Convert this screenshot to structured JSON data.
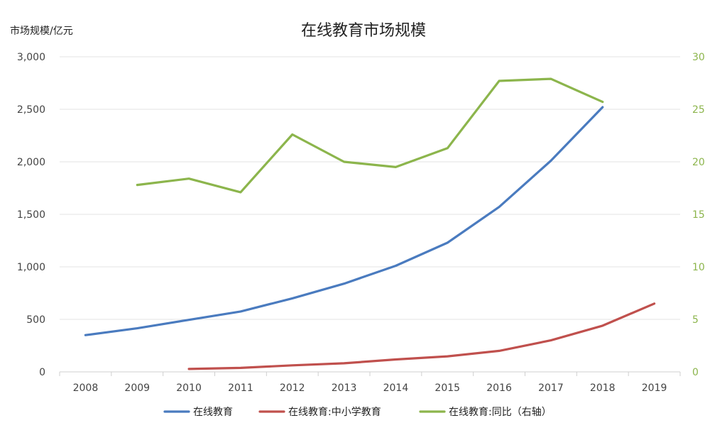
{
  "chart_data": {
    "type": "line",
    "title": "在线教育市场规模",
    "ylabel": "市场规模/亿元",
    "categories": [
      "2008",
      "2009",
      "2010",
      "2011",
      "2012",
      "2013",
      "2014",
      "2015",
      "2016",
      "2017",
      "2018",
      "2019"
    ],
    "ylim": [
      0,
      3000
    ],
    "y2lim": [
      0,
      30
    ],
    "yticks": [
      "0",
      "500",
      "1,000",
      "1,500",
      "2,000",
      "2,500",
      "3,000"
    ],
    "y2ticks": [
      "0",
      "5",
      "10",
      "15",
      "20",
      "25",
      "30"
    ],
    "grid": true,
    "legend_position": "bottom",
    "series": [
      {
        "name": "在线教育",
        "axis": "left",
        "color": "#4a7bbf",
        "values": [
          350,
          415,
          495,
          575,
          700,
          840,
          1010,
          1230,
          1570,
          2010,
          2520,
          null
        ]
      },
      {
        "name": "在线教育:中小学教育",
        "axis": "left",
        "color": "#c0504d",
        "values": [
          null,
          null,
          28,
          38,
          62,
          82,
          118,
          148,
          200,
          300,
          440,
          650
        ]
      },
      {
        "name": "在线教育:同比（右轴）",
        "axis": "right",
        "color": "#8cb54c",
        "values": [
          null,
          17.8,
          18.4,
          17.1,
          22.6,
          20.0,
          19.5,
          21.3,
          27.7,
          27.9,
          25.7,
          null
        ]
      }
    ]
  }
}
